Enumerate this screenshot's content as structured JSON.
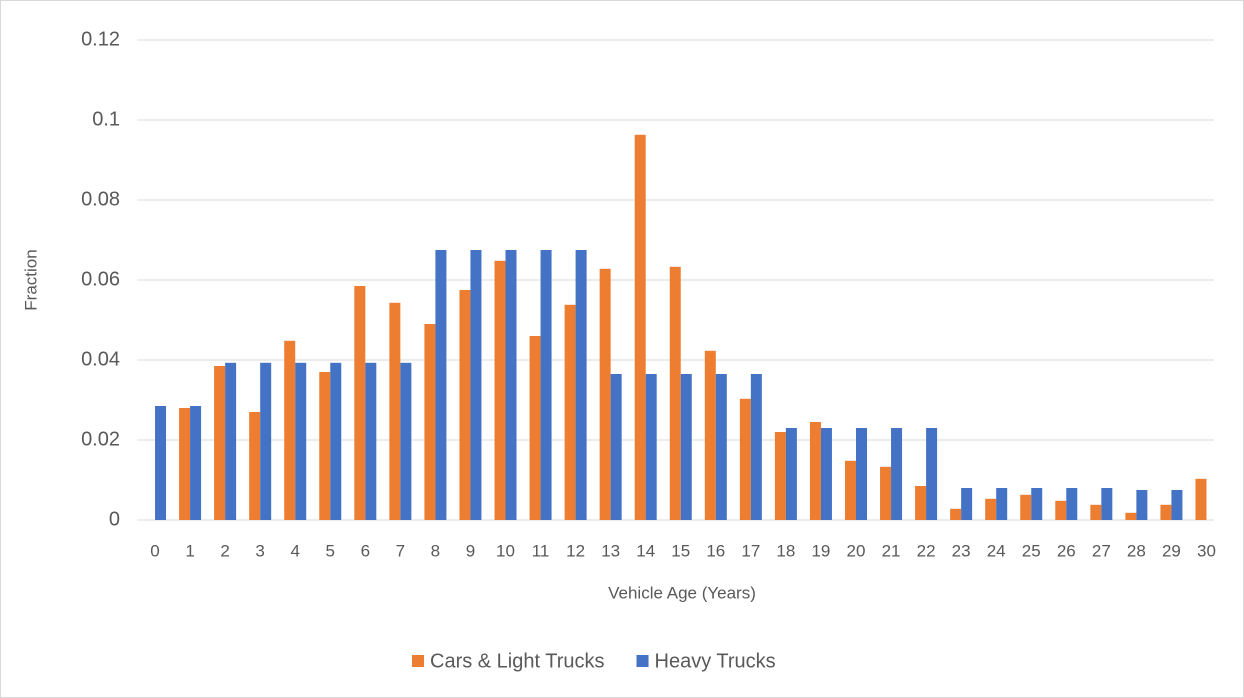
{
  "chart_data": {
    "type": "bar",
    "x_label": "Vehicle Age (Years)",
    "y_label": "Fraction",
    "categories": [
      0,
      1,
      2,
      3,
      4,
      5,
      6,
      7,
      8,
      9,
      10,
      11,
      12,
      13,
      14,
      15,
      16,
      17,
      18,
      19,
      20,
      21,
      22,
      23,
      24,
      25,
      26,
      27,
      28,
      29,
      30
    ],
    "series": [
      {
        "name": "Cars & Light Trucks",
        "color": "#ed7d31",
        "values": [
          0,
          0.028,
          0.0385,
          0.027,
          0.0448,
          0.037,
          0.0585,
          0.0543,
          0.049,
          0.0575,
          0.0648,
          0.046,
          0.0538,
          0.0628,
          0.0963,
          0.0633,
          0.0423,
          0.0303,
          0.022,
          0.0245,
          0.0148,
          0.0133,
          0.0085,
          0.0028,
          0.0053,
          0.0063,
          0.0048,
          0.0038,
          0.0018,
          0.0038,
          0.0103
        ]
      },
      {
        "name": "Heavy Trucks",
        "color": "#4472c4",
        "values": [
          0.0285,
          0.0285,
          0.0393,
          0.0393,
          0.0393,
          0.0393,
          0.0393,
          0.0393,
          0.0675,
          0.0675,
          0.0675,
          0.0675,
          0.0675,
          0.0365,
          0.0365,
          0.0365,
          0.0365,
          0.0365,
          0.023,
          0.023,
          0.023,
          0.023,
          0.023,
          0.008,
          0.008,
          0.008,
          0.008,
          0.008,
          0.0075,
          0.0075,
          0
        ]
      }
    ],
    "ylim": [
      0,
      0.12
    ],
    "yticks": [
      0,
      0.02,
      0.04,
      0.06,
      0.08,
      0.1,
      0.12
    ],
    "grid": true,
    "legend": "bottom"
  }
}
